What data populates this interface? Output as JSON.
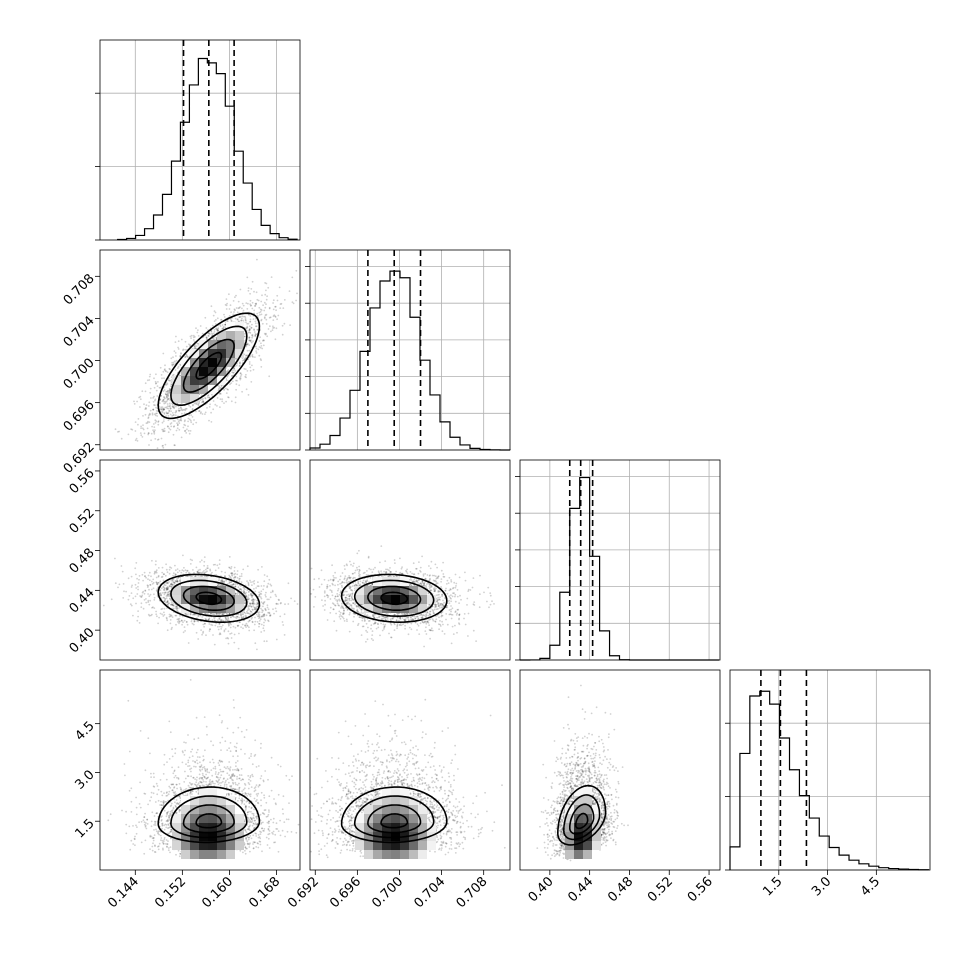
{
  "chart_data": {
    "type": "corner",
    "title": "",
    "grid": true,
    "parameters": [
      {
        "index": 0,
        "axis_label": "",
        "range": [
          0.138,
          0.172
        ],
        "ticks": [
          0.144,
          0.152,
          0.16,
          0.168
        ],
        "tick_labels": [
          "0.144",
          "0.152",
          "0.160",
          "0.168"
        ],
        "mean": 0.1565,
        "std": 0.0043,
        "quantiles": [
          0.1522,
          0.1565,
          0.1608
        ]
      },
      {
        "index": 1,
        "axis_label": "",
        "range": [
          0.6915,
          0.7105
        ],
        "ticks": [
          0.692,
          0.696,
          0.7,
          0.704,
          0.708
        ],
        "tick_labels": [
          "0.692",
          "0.696",
          "0.700",
          "0.704",
          "0.708"
        ],
        "mean": 0.6995,
        "std": 0.0025,
        "quantiles": [
          0.697,
          0.6995,
          0.702
        ]
      },
      {
        "index": 2,
        "axis_label": "",
        "range": [
          0.37,
          0.571
        ],
        "ticks": [
          0.4,
          0.44,
          0.48,
          0.52,
          0.56
        ],
        "tick_labels": [
          "0.40",
          "0.44",
          "0.48",
          "0.52",
          "0.56"
        ],
        "mean": 0.432,
        "std": 0.012,
        "quantiles": [
          0.42,
          0.431,
          0.443
        ]
      },
      {
        "index": 3,
        "axis_label": "",
        "range": [
          0.0,
          6.15
        ],
        "ticks": [
          1.5,
          3.0,
          4.5
        ],
        "tick_labels": [
          "1.5",
          "3.0",
          "4.5"
        ],
        "mean": 1.65,
        "std": 0.65,
        "quantiles": [
          0.95,
          1.55,
          2.35
        ]
      }
    ],
    "histograms": [
      {
        "param": 0,
        "peak_ylim": [
          0,
          1.09
        ],
        "ytick_fractions": [
          0.0,
          0.4,
          0.8
        ]
      },
      {
        "param": 1,
        "peak_ylim": [
          0,
          1.09
        ],
        "ytick_fractions": [
          0.0,
          0.2,
          0.4,
          0.6,
          0.8,
          1.0
        ]
      },
      {
        "param": 2,
        "peak_ylim": [
          0,
          1.09
        ],
        "ytick_fractions": [
          0.0,
          0.2,
          0.4,
          0.6,
          0.8,
          1.0
        ]
      },
      {
        "param": 3,
        "peak_ylim": [
          0,
          1.09
        ],
        "ytick_fractions": [
          0.0,
          0.4,
          0.8
        ]
      }
    ],
    "scatter_pairs": [
      {
        "x_param": 0,
        "y_param": 1,
        "correlation": 0.75
      },
      {
        "x_param": 0,
        "y_param": 2,
        "correlation": -0.25
      },
      {
        "x_param": 1,
        "y_param": 2,
        "correlation": -0.1
      },
      {
        "x_param": 0,
        "y_param": 3,
        "correlation": 0.05
      },
      {
        "x_param": 1,
        "y_param": 3,
        "correlation": 0.05
      },
      {
        "x_param": 2,
        "y_param": 3,
        "correlation": 0.45
      }
    ],
    "contour_levels": [
      0.5,
      1.0,
      1.5,
      2.0
    ],
    "colors": {
      "frame": "#000000",
      "grid": "#b0b0b0",
      "density_max": "#000000",
      "density_min": "#ffffff"
    }
  }
}
